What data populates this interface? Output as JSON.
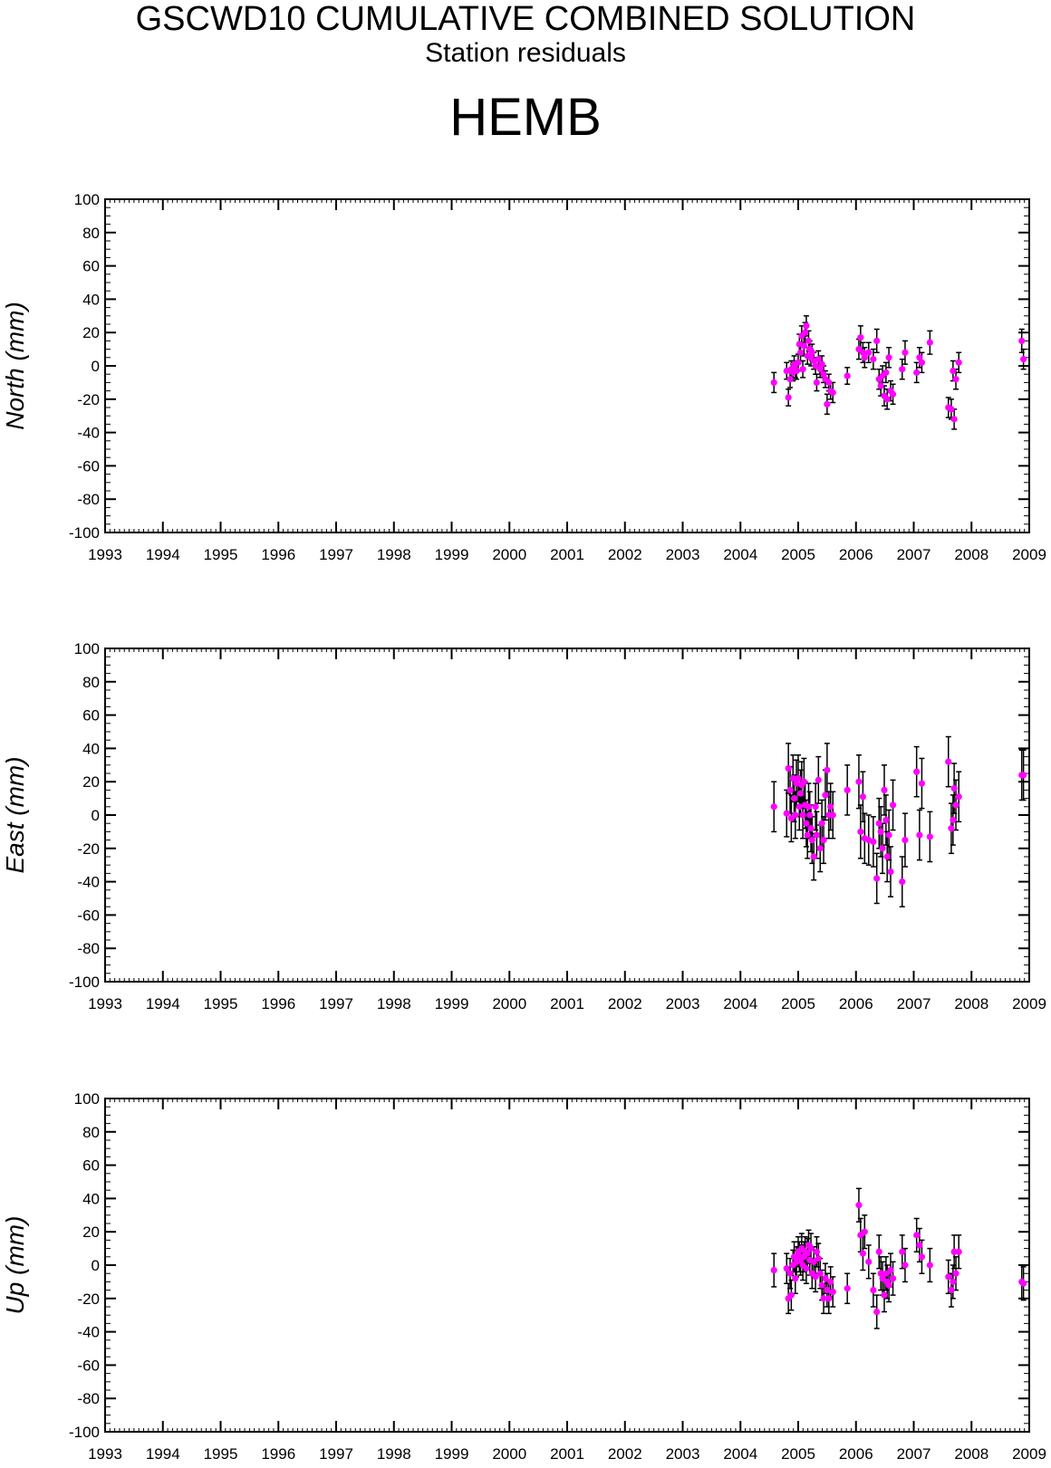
{
  "header": {
    "title": "GSCWD10 CUMULATIVE COMBINED SOLUTION",
    "subtitle": "Station residuals",
    "station": "HEMB"
  },
  "colors": {
    "point": "#ff00ff",
    "errorbar": "#000000",
    "axis": "#000000"
  },
  "chart_data": [
    {
      "type": "scatter",
      "ylabel": "North (mm)",
      "xlim": [
        1993,
        2009
      ],
      "ylim": [
        -100,
        100
      ],
      "x_ticks": [
        "1993",
        "1994",
        "1995",
        "1996",
        "1997",
        "1998",
        "1999",
        "2000",
        "2001",
        "2002",
        "2003",
        "2004",
        "2005",
        "2006",
        "2007",
        "2008",
        "2009"
      ],
      "y_ticks": [
        "100",
        "80",
        "60",
        "40",
        "20",
        "0",
        "-20",
        "-40",
        "-60",
        "-80",
        "-100"
      ],
      "grid": false,
      "series": [
        {
          "x": [
            2004.58,
            2004.8,
            2004.83,
            2004.86,
            2004.88,
            2004.91,
            2004.93,
            2004.95,
            2004.97,
            2005.0,
            2005.02,
            2005.04,
            2005.06,
            2005.08,
            2005.1,
            2005.12,
            2005.14,
            2005.16,
            2005.18,
            2005.2,
            2005.22,
            2005.24,
            2005.27,
            2005.3,
            2005.32,
            2005.35,
            2005.38,
            2005.41,
            2005.44,
            2005.47,
            2005.5,
            2005.53,
            2005.56,
            2005.6,
            2005.85,
            2006.05,
            2006.08,
            2006.12,
            2006.15,
            2006.22,
            2006.3,
            2006.36,
            2006.4,
            2006.43,
            2006.46,
            2006.49,
            2006.52,
            2006.54,
            2006.57,
            2006.6,
            2006.64,
            2006.8,
            2006.85,
            2007.05,
            2007.1,
            2007.14,
            2007.28,
            2007.6,
            2007.65,
            2007.68,
            2007.7,
            2007.73,
            2007.78,
            2008.87,
            2008.9
          ],
          "y": [
            -10,
            -3,
            -19,
            -8,
            -2,
            -4,
            1,
            -2,
            -3,
            2,
            13,
            8,
            18,
            -2,
            12,
            20,
            24,
            6,
            15,
            10,
            5,
            8,
            3,
            0,
            -10,
            4,
            -2,
            1,
            -5,
            -8,
            -23,
            -10,
            -15,
            -16,
            -6,
            10,
            17,
            8,
            5,
            8,
            4,
            15,
            -8,
            -12,
            -6,
            -18,
            -4,
            -20,
            5,
            -15,
            -17,
            -2,
            8,
            -4,
            5,
            2,
            14,
            -25,
            -26,
            -3,
            -32,
            -8,
            2,
            15,
            4
          ],
          "err": [
            6,
            5,
            5,
            5,
            5,
            5,
            5,
            5,
            5,
            5,
            6,
            5,
            6,
            5,
            6,
            6,
            6,
            5,
            6,
            5,
            5,
            5,
            5,
            5,
            5,
            5,
            5,
            5,
            5,
            5,
            6,
            5,
            5,
            6,
            5,
            6,
            7,
            6,
            6,
            6,
            6,
            7,
            6,
            6,
            6,
            6,
            6,
            6,
            6,
            6,
            6,
            6,
            7,
            6,
            6,
            6,
            7,
            6,
            6,
            6,
            6,
            6,
            6,
            7,
            6
          ]
        }
      ]
    },
    {
      "type": "scatter",
      "ylabel": "East (mm)",
      "xlim": [
        1993,
        2009
      ],
      "ylim": [
        -100,
        100
      ],
      "x_ticks": [
        "1993",
        "1994",
        "1995",
        "1996",
        "1997",
        "1998",
        "1999",
        "2000",
        "2001",
        "2002",
        "2003",
        "2004",
        "2005",
        "2006",
        "2007",
        "2008",
        "2009"
      ],
      "y_ticks": [
        "100",
        "80",
        "60",
        "40",
        "20",
        "0",
        "-20",
        "-40",
        "-60",
        "-80",
        "-100"
      ],
      "grid": false,
      "series": [
        {
          "x": [
            2004.58,
            2004.8,
            2004.83,
            2004.86,
            2004.88,
            2004.91,
            2004.93,
            2004.95,
            2004.97,
            2005.0,
            2005.02,
            2005.04,
            2005.06,
            2005.08,
            2005.1,
            2005.12,
            2005.14,
            2005.16,
            2005.18,
            2005.2,
            2005.22,
            2005.24,
            2005.27,
            2005.3,
            2005.32,
            2005.35,
            2005.38,
            2005.41,
            2005.44,
            2005.47,
            2005.5,
            2005.53,
            2005.56,
            2005.6,
            2005.85,
            2006.05,
            2006.08,
            2006.12,
            2006.15,
            2006.22,
            2006.3,
            2006.36,
            2006.4,
            2006.43,
            2006.46,
            2006.49,
            2006.52,
            2006.54,
            2006.57,
            2006.6,
            2006.64,
            2006.8,
            2006.85,
            2007.05,
            2007.1,
            2007.14,
            2007.28,
            2007.6,
            2007.65,
            2007.68,
            2007.7,
            2007.73,
            2007.78,
            2008.87,
            2008.9
          ],
          "y": [
            5,
            1,
            28,
            15,
            -2,
            22,
            10,
            0,
            19,
            22,
            5,
            13,
            18,
            0,
            20,
            6,
            -5,
            -12,
            5,
            0,
            -8,
            -15,
            -25,
            5,
            -12,
            21,
            -20,
            -5,
            -15,
            12,
            27,
            0,
            5,
            0,
            15,
            20,
            -10,
            11,
            -14,
            -15,
            -16,
            -38,
            -5,
            -10,
            -20,
            15,
            -3,
            -25,
            -12,
            -34,
            6,
            -40,
            -15,
            26,
            -12,
            19,
            -13,
            32,
            -8,
            -3,
            16,
            6,
            11,
            24,
            24
          ],
          "err": [
            15,
            14,
            15,
            14,
            14,
            14,
            14,
            14,
            14,
            14,
            14,
            14,
            14,
            14,
            14,
            14,
            14,
            14,
            14,
            14,
            14,
            14,
            14,
            14,
            14,
            14,
            14,
            14,
            14,
            15,
            16,
            14,
            14,
            14,
            15,
            16,
            16,
            15,
            15,
            15,
            15,
            15,
            15,
            15,
            15,
            15,
            15,
            15,
            15,
            15,
            15,
            15,
            16,
            15,
            15,
            15,
            15,
            15,
            15,
            15,
            15,
            15,
            15,
            15,
            15
          ]
        }
      ]
    },
    {
      "type": "scatter",
      "ylabel": "Up (mm)",
      "xlim": [
        1993,
        2009
      ],
      "ylim": [
        -100,
        100
      ],
      "x_ticks": [
        "1993",
        "1994",
        "1995",
        "1996",
        "1997",
        "1998",
        "1999",
        "2000",
        "2001",
        "2002",
        "2003",
        "2004",
        "2005",
        "2006",
        "2007",
        "2008",
        "2009"
      ],
      "y_ticks": [
        "100",
        "80",
        "60",
        "40",
        "20",
        "0",
        "-20",
        "-40",
        "-60",
        "-80",
        "-100"
      ],
      "grid": false,
      "series": [
        {
          "x": [
            2004.58,
            2004.8,
            2004.83,
            2004.86,
            2004.88,
            2004.91,
            2004.93,
            2004.95,
            2004.97,
            2005.0,
            2005.02,
            2005.04,
            2005.06,
            2005.08,
            2005.1,
            2005.12,
            2005.14,
            2005.16,
            2005.18,
            2005.2,
            2005.22,
            2005.24,
            2005.27,
            2005.3,
            2005.32,
            2005.35,
            2005.38,
            2005.41,
            2005.44,
            2005.47,
            2005.5,
            2005.53,
            2005.56,
            2005.6,
            2005.85,
            2006.05,
            2006.08,
            2006.12,
            2006.15,
            2006.22,
            2006.3,
            2006.36,
            2006.4,
            2006.43,
            2006.46,
            2006.49,
            2006.52,
            2006.54,
            2006.57,
            2006.6,
            2006.64,
            2006.8,
            2006.85,
            2007.05,
            2007.1,
            2007.14,
            2007.28,
            2007.6,
            2007.65,
            2007.68,
            2007.7,
            2007.73,
            2007.78,
            2008.87,
            2008.9
          ],
          "y": [
            -3,
            -2,
            -20,
            -5,
            -18,
            0,
            5,
            -8,
            2,
            8,
            5,
            3,
            10,
            0,
            5,
            8,
            -2,
            7,
            12,
            3,
            10,
            -5,
            2,
            -7,
            8,
            4,
            -5,
            -12,
            -20,
            -8,
            -15,
            -20,
            -10,
            -16,
            -14,
            36,
            18,
            7,
            20,
            2,
            -15,
            -28,
            8,
            -5,
            -8,
            -18,
            -5,
            -10,
            -12,
            -3,
            -8,
            8,
            0,
            18,
            12,
            5,
            0,
            -7,
            -15,
            -10,
            8,
            -5,
            8,
            -10,
            -11
          ],
          "err": [
            10,
            9,
            9,
            9,
            9,
            9,
            9,
            9,
            9,
            9,
            9,
            9,
            9,
            9,
            9,
            9,
            9,
            9,
            9,
            9,
            9,
            9,
            9,
            9,
            9,
            9,
            9,
            9,
            9,
            9,
            10,
            9,
            9,
            9,
            9,
            10,
            10,
            10,
            10,
            10,
            10,
            10,
            10,
            10,
            10,
            10,
            10,
            10,
            10,
            10,
            10,
            10,
            10,
            10,
            10,
            10,
            10,
            10,
            10,
            10,
            10,
            10,
            10,
            10,
            10
          ]
        }
      ]
    }
  ]
}
